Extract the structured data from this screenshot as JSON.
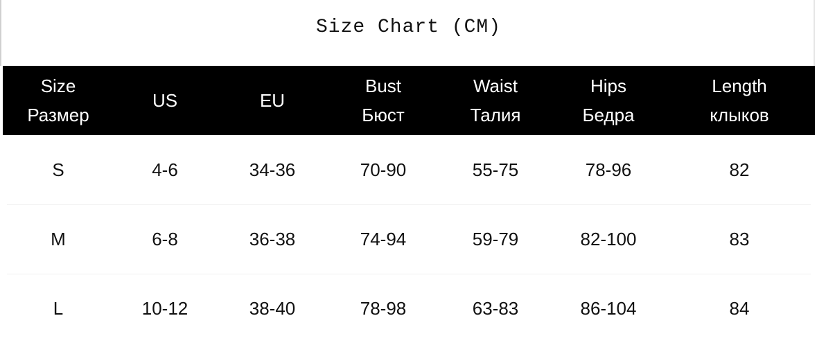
{
  "title": "Size Chart (CM)",
  "header": [
    {
      "line1": "Size",
      "line2": "Размер"
    },
    {
      "line1": "US",
      "line2": ""
    },
    {
      "line1": "EU",
      "line2": ""
    },
    {
      "line1": "Bust",
      "line2": "Бюст"
    },
    {
      "line1": "Waist",
      "line2": "Талия"
    },
    {
      "line1": "Hips",
      "line2": "Бедра"
    },
    {
      "line1": "Length",
      "line2": "клыков"
    }
  ],
  "rows": [
    [
      "S",
      "4-6",
      "34-36",
      "70-90",
      "55-75",
      "78-96",
      "82"
    ],
    [
      "M",
      "6-8",
      "36-38",
      "74-94",
      "59-79",
      "82-100",
      "83"
    ],
    [
      "L",
      "10-12",
      "38-40",
      "78-98",
      "63-83",
      "86-104",
      "84"
    ]
  ],
  "colors": {
    "header_bg": "#000000",
    "header_text": "#ffffff",
    "text": "#111111"
  }
}
